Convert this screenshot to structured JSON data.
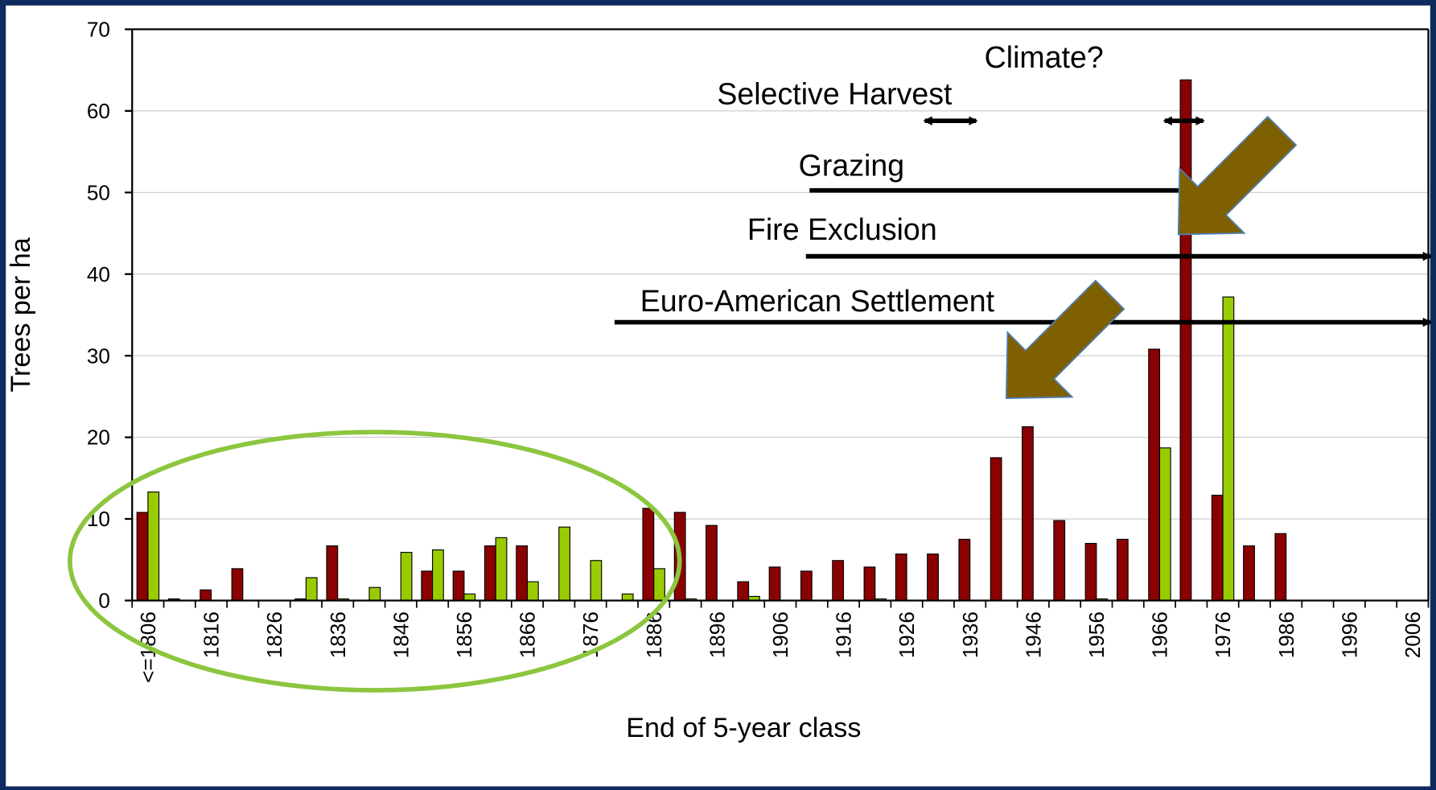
{
  "chart_data": {
    "type": "bar",
    "ylabel": "Trees per ha",
    "xlabel": "End of 5-year class",
    "categories": [
      "<=1806",
      null,
      "1816",
      null,
      "1826",
      null,
      "1836",
      null,
      "1846",
      null,
      "1856",
      null,
      "1866",
      null,
      "1876",
      null,
      "1886",
      null,
      "1896",
      null,
      "1906",
      null,
      "1916",
      null,
      "1926",
      null,
      "1936",
      null,
      "1946",
      null,
      "1956",
      null,
      "1966",
      null,
      "1976",
      null,
      "1986",
      null,
      "1996",
      null,
      "2006"
    ],
    "series": [
      {
        "color": "#8b0000",
        "values": [
          10.8,
          0.2,
          1.3,
          3.9,
          0,
          0.2,
          6.7,
          0,
          0,
          3.6,
          3.6,
          6.7,
          6.7,
          0,
          0,
          0,
          11.3,
          10.8,
          9.2,
          2.3,
          4.1,
          3.6,
          4.9,
          4.1,
          5.7,
          5.7,
          7.5,
          17.5,
          21.3,
          9.8,
          7.0,
          7.5,
          30.8,
          63.8,
          12.9,
          6.7,
          8.2,
          0,
          0,
          0,
          0
        ]
      },
      {
        "color": "#99cc00",
        "values": [
          13.3,
          0,
          0,
          0,
          0,
          2.8,
          0.2,
          1.6,
          5.9,
          6.2,
          0.8,
          7.7,
          2.3,
          9.0,
          4.9,
          0.8,
          3.9,
          0.2,
          0,
          0.5,
          0,
          0,
          0,
          0.2,
          0,
          0,
          0,
          0,
          0,
          0,
          0.2,
          0,
          18.7,
          0,
          37.2,
          0,
          0,
          0,
          0,
          0,
          0
        ]
      }
    ],
    "ylim": [
      0,
      70
    ],
    "yticks": [
      0,
      10,
      20,
      30,
      40,
      50,
      60,
      70
    ],
    "grid": true,
    "annotations": [
      "Climate?",
      "Selective Harvest",
      "Grazing",
      "Fire Exclusion",
      "Euro-American Settlement"
    ]
  }
}
